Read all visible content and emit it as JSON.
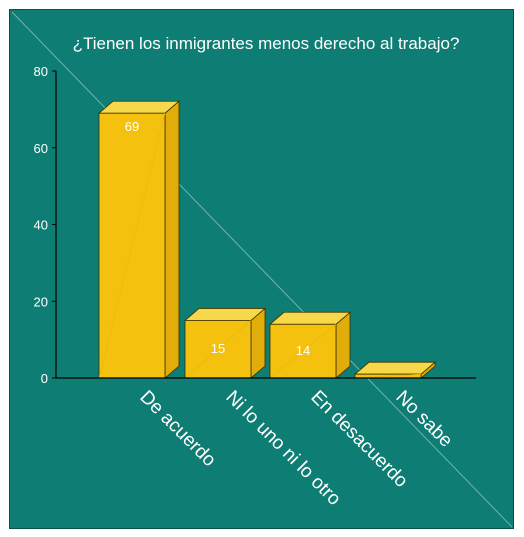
{
  "chart_data": {
    "type": "bar",
    "title": "¿Tienen los inmigrantes menos derecho al trabajo?",
    "categories": [
      "De acuerdo",
      "Ni lo uno ni lo otro",
      "En desacuerdo",
      "No sabe"
    ],
    "values": [
      69,
      15,
      14,
      1
    ],
    "data_labels": [
      "69",
      "15",
      "14",
      ""
    ],
    "ylim": [
      0,
      80
    ],
    "yticks": [
      "0",
      "20",
      "40",
      "60",
      "80"
    ],
    "xlabel": "",
    "ylabel": "",
    "grid": false,
    "legend": "none",
    "colors": {
      "background": "#0e7d74",
      "bar_front": "#f5c10f",
      "bar_top": "#f7d84a",
      "bar_side": "#e0ad0a",
      "axis": "#000000",
      "text": "#ffffff"
    }
  }
}
